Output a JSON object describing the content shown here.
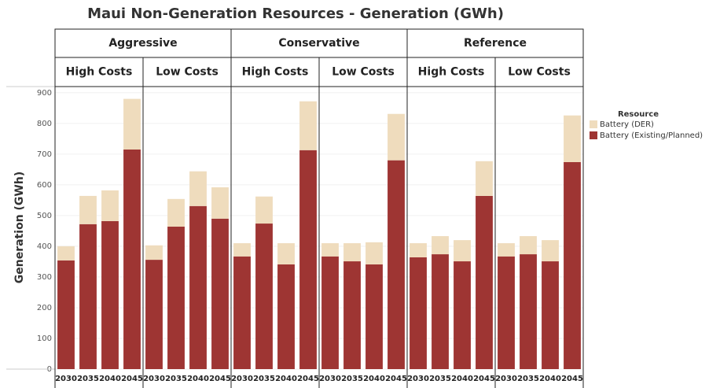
{
  "chart_data": {
    "type": "bar",
    "stacked": true,
    "title": "Maui Non-Generation Resources - Generation (GWh)",
    "y_label": "Generation (GWh)",
    "ylim": [
      0,
      920
    ],
    "yticks": [
      0,
      100,
      200,
      300,
      400,
      500,
      600,
      700,
      800,
      900
    ],
    "grid": true,
    "legend_title": "Resource",
    "legend": "right",
    "series": [
      {
        "name": "Battery (Existing/Planned)",
        "color": "#9e3533"
      },
      {
        "name": "Battery (DER)",
        "color": "#efdcbd"
      }
    ],
    "groups": [
      {
        "name": "Aggressive",
        "panels": [
          {
            "name": "High Costs",
            "categories": [
              "2030",
              "2035",
              "2040",
              "2045"
            ],
            "series": [
              {
                "values": [
                  354,
                  472,
                  482,
                  715
                ]
              },
              {
                "values": [
                  46,
                  92,
                  100,
                  165
                ]
              }
            ]
          },
          {
            "name": "Low Costs",
            "categories": [
              "2030",
              "2035",
              "2040",
              "2045"
            ],
            "series": [
              {
                "values": [
                  356,
                  464,
                  531,
                  490
                ]
              },
              {
                "values": [
                  47,
                  90,
                  113,
                  102
                ]
              }
            ]
          }
        ]
      },
      {
        "name": "Conservative",
        "panels": [
          {
            "name": "High Costs",
            "categories": [
              "2030",
              "2035",
              "2040",
              "2045"
            ],
            "series": [
              {
                "values": [
                  367,
                  474,
                  341,
                  713
                ]
              },
              {
                "values": [
                  43,
                  88,
                  69,
                  159
                ]
              }
            ]
          },
          {
            "name": "Low Costs",
            "categories": [
              "2030",
              "2035",
              "2040",
              "2045"
            ],
            "series": [
              {
                "values": [
                  367,
                  351,
                  341,
                  680
                ]
              },
              {
                "values": [
                  43,
                  59,
                  72,
                  151
                ]
              }
            ]
          }
        ]
      },
      {
        "name": "Reference",
        "panels": [
          {
            "name": "High Costs",
            "categories": [
              "2030",
              "2035",
              "2040",
              "2045"
            ],
            "series": [
              {
                "values": [
                  364,
                  374,
                  351,
                  564
                ]
              },
              {
                "values": [
                  46,
                  59,
                  69,
                  113
                ]
              }
            ]
          },
          {
            "name": "Low Costs",
            "categories": [
              "2030",
              "2035",
              "2040",
              "2045"
            ],
            "series": [
              {
                "values": [
                  367,
                  374,
                  351,
                  674
                ]
              },
              {
                "values": [
                  43,
                  59,
                  69,
                  152
                ]
              }
            ]
          }
        ]
      }
    ]
  }
}
